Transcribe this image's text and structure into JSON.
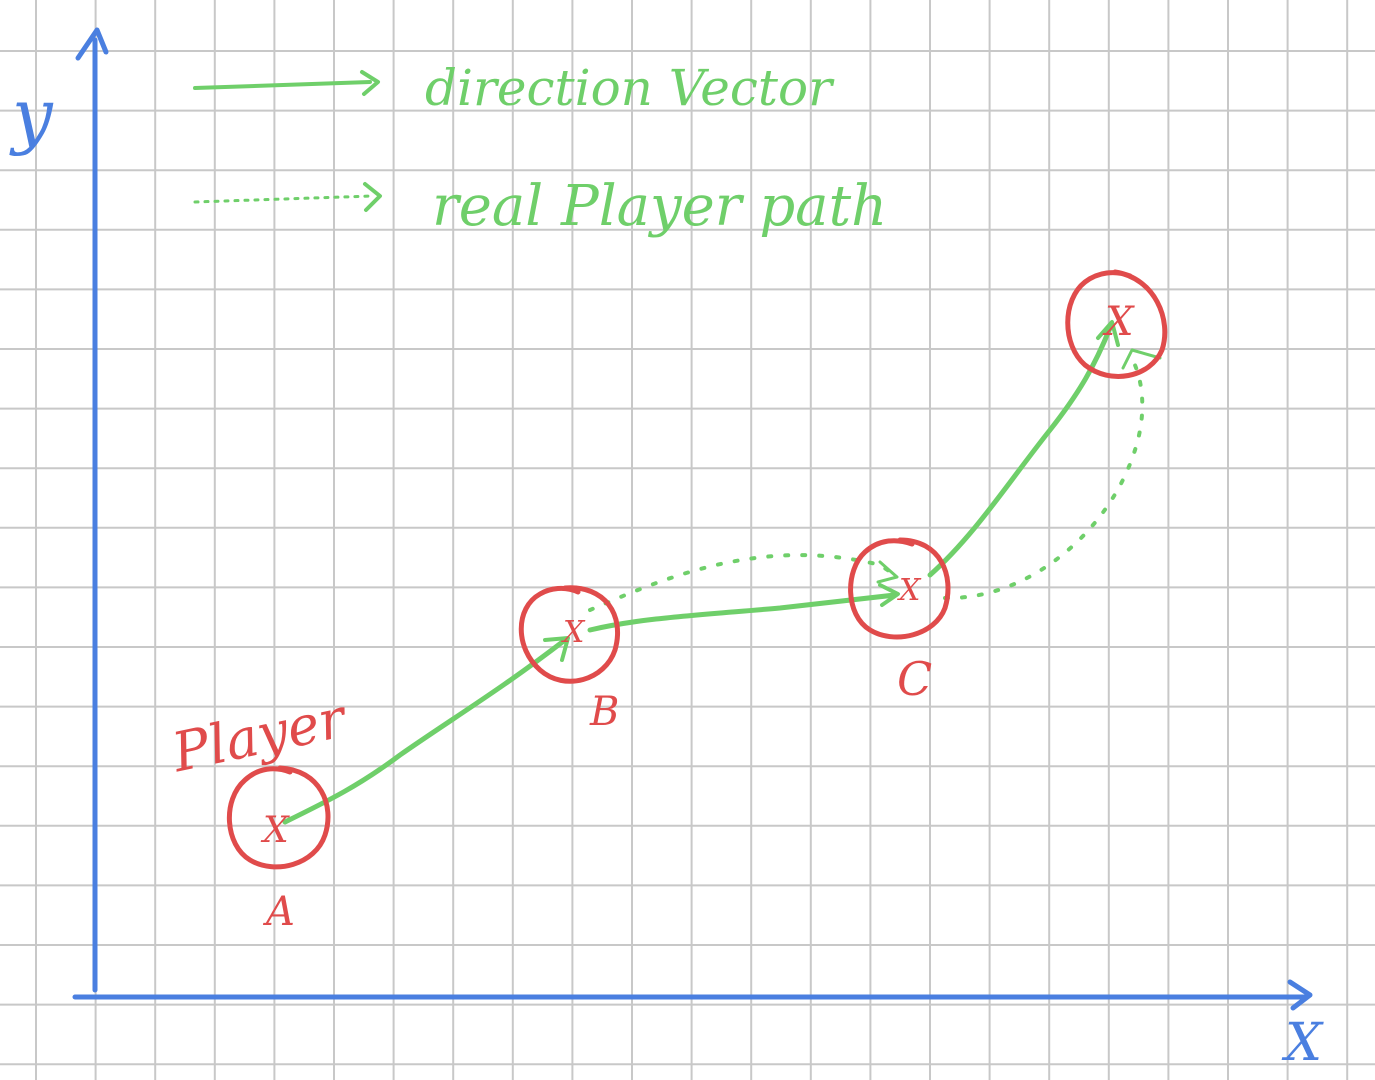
{
  "colors": {
    "grid": "#c8c8c8",
    "axis": "#4a7fe0",
    "vector": "#6fcf6a",
    "circle": "#e04b4b"
  },
  "axes": {
    "x_label": "X",
    "y_label": "y"
  },
  "legend": {
    "solid_label": "direction Vector",
    "dotted_label": "real Player path"
  },
  "player_label": "Player",
  "points": {
    "a": "A",
    "b": "B",
    "c": "C",
    "d": "X",
    "marker": "X"
  }
}
